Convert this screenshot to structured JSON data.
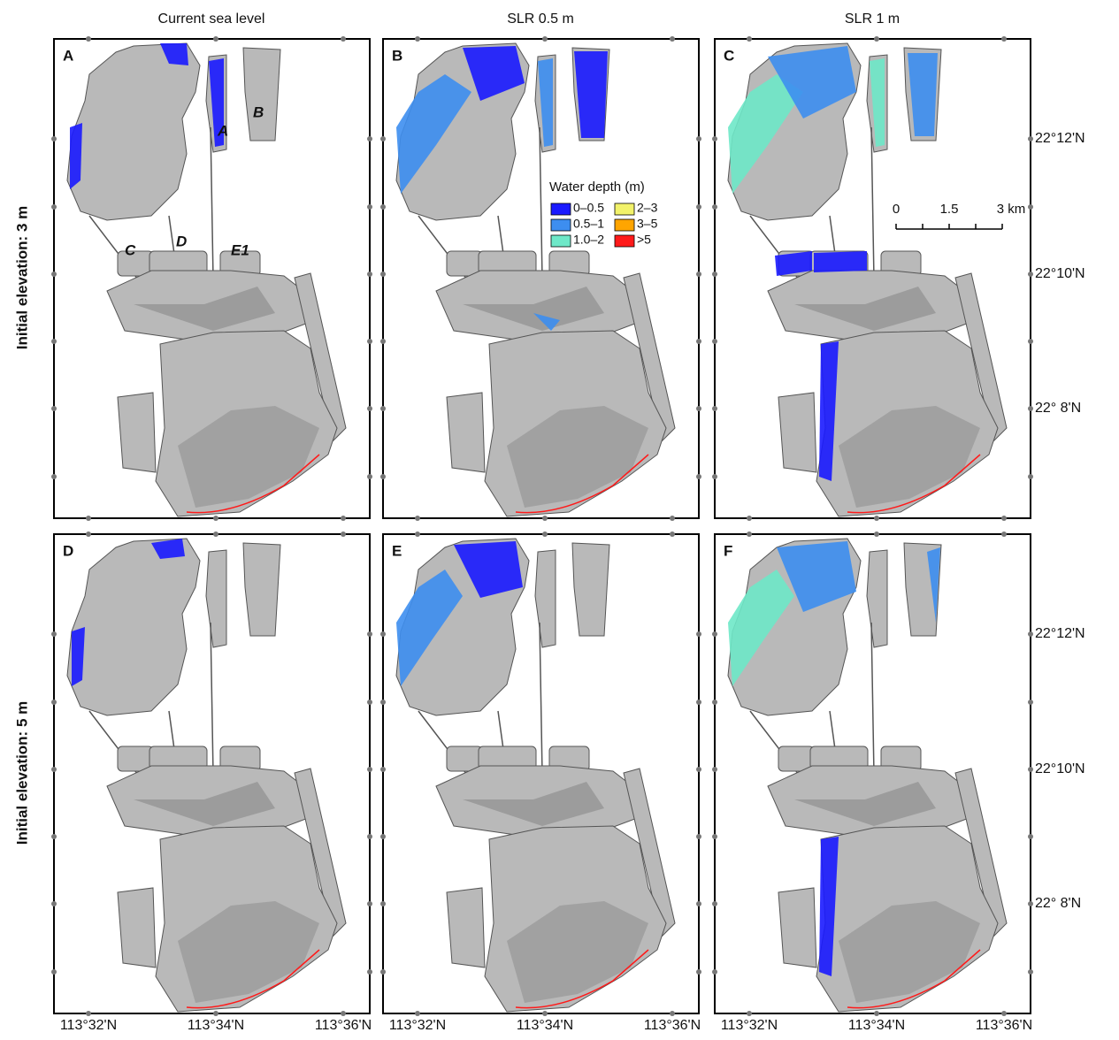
{
  "columns": [
    "Current sea level",
    "SLR 0.5 m",
    "SLR 1 m"
  ],
  "rows": [
    "Initial elevation: 3 m",
    "Initial elevation: 5 m"
  ],
  "panels": [
    "A",
    "B",
    "C",
    "D",
    "E",
    "F"
  ],
  "region_labels": [
    "A",
    "B",
    "C",
    "D",
    "E1"
  ],
  "legend": {
    "title": "Water depth (m)",
    "items": [
      {
        "label": "0–0.5",
        "color": "#1a1aff"
      },
      {
        "label": "0.5–1",
        "color": "#3d8ef0"
      },
      {
        "label": "1.0–2",
        "color": "#6ee8c8"
      },
      {
        "label": "2–3",
        "color": "#f2f26a"
      },
      {
        "label": "3–5",
        "color": "#ffa500"
      },
      {
        "label": ">5",
        "color": "#ff1a1a"
      }
    ]
  },
  "scale_bar": [
    "0",
    "1.5",
    "3 km"
  ],
  "lat_labels": [
    "22°12'N",
    "22°10'N",
    "22° 8'N"
  ],
  "lon_labels": [
    "113°32'N",
    "113°34'N",
    "113°36'N"
  ]
}
